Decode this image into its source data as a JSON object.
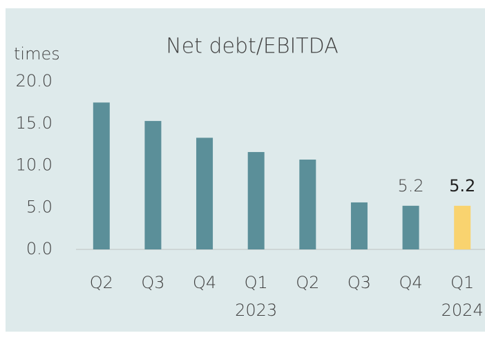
{
  "chart_data": {
    "type": "bar",
    "title": "Net debt/EBITDA",
    "y_axis_label": "times",
    "categories": [
      "Q2",
      "Q3",
      "Q4",
      "Q1",
      "Q2",
      "Q3",
      "Q4",
      "Q1"
    ],
    "year_labels": [
      null,
      null,
      null,
      "2023",
      null,
      null,
      null,
      "2024"
    ],
    "values": [
      17.5,
      15.3,
      13.3,
      11.6,
      10.7,
      5.6,
      5.2,
      5.2
    ],
    "value_labels": [
      null,
      null,
      null,
      null,
      null,
      null,
      "5.2",
      "5.2"
    ],
    "colors": [
      "#5b8f99",
      "#5b8f99",
      "#5b8f99",
      "#5b8f99",
      "#5b8f99",
      "#5b8f99",
      "#5b8f99",
      "#f9d36f"
    ],
    "ylim": [
      0,
      20
    ],
    "yticks": [
      {
        "value": 0,
        "label": "0.0"
      },
      {
        "value": 5,
        "label": "5.0"
      },
      {
        "value": 10,
        "label": "10.0"
      },
      {
        "value": 15,
        "label": "15.0"
      },
      {
        "value": 20,
        "label": "20.0"
      }
    ]
  }
}
